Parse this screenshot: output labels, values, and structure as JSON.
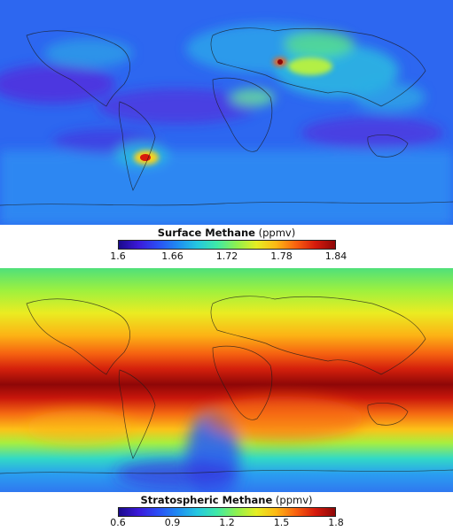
{
  "maps": [
    {
      "id": "surface",
      "legend_title_bold": "Surface Methane",
      "legend_title_unit": "(ppmv)",
      "ticks": [
        "1.6",
        "1.66",
        "1.72",
        "1.78",
        "1.84"
      ],
      "colormap": [
        "#1a0a8c",
        "#3b19d8",
        "#2b4ef5",
        "#1f8cf2",
        "#25c8e0",
        "#3fe9a6",
        "#8ff14f",
        "#e6ee23",
        "#fdb814",
        "#f9620f",
        "#d61a0c",
        "#8e0707"
      ]
    },
    {
      "id": "stratospheric",
      "legend_title_bold": "Stratospheric Methane",
      "legend_title_unit": "(ppmv)",
      "ticks": [
        "0.6",
        "0.9",
        "1.2",
        "1.5",
        "1.8"
      ],
      "colormap": [
        "#1a0a8c",
        "#3b19d8",
        "#2b4ef5",
        "#1f8cf2",
        "#25c8e0",
        "#3fe9a6",
        "#8ff14f",
        "#e6ee23",
        "#fdb814",
        "#f9620f",
        "#d61a0c",
        "#8e0707"
      ]
    }
  ]
}
